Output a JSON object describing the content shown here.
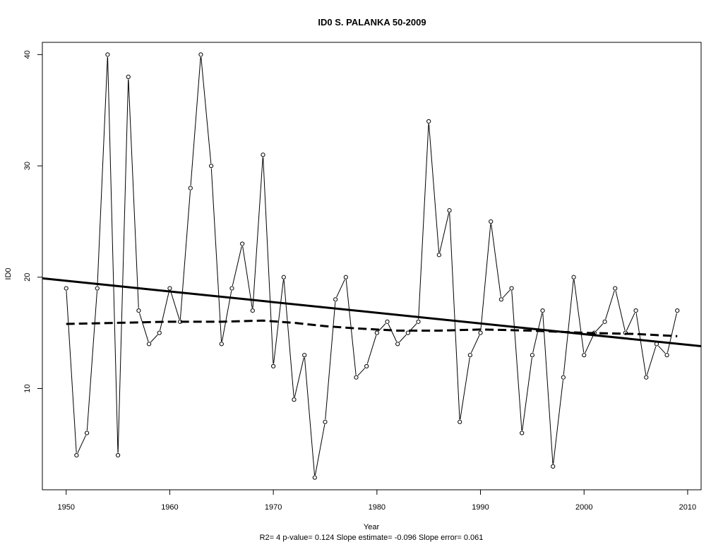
{
  "chart_data": {
    "type": "line",
    "title": "ID0    S. PALANKA 50-2009",
    "xlabel": "Year",
    "ylabel": "ID0",
    "footer": "R2= 4  p-value= 0.124  Slope estimate= -0.096  Slope error= 0.061",
    "xlim": [
      1947.7,
      2011.3
    ],
    "ylim": [
      0.9,
      41.1
    ],
    "xticks": [
      1950,
      1960,
      1970,
      1980,
      1990,
      2000,
      2010
    ],
    "yticks": [
      10,
      20,
      30,
      40
    ],
    "grid": false,
    "series": [
      {
        "style": "thin line with open circle markers",
        "x": [
          1950,
          1951,
          1952,
          1953,
          1954,
          1955,
          1956,
          1957,
          1958,
          1959,
          1960,
          1961,
          1962,
          1963,
          1964,
          1965,
          1966,
          1967,
          1968,
          1969,
          1970,
          1971,
          1972,
          1973,
          1974,
          1975,
          1976,
          1977,
          1978,
          1979,
          1980,
          1981,
          1982,
          1983,
          1984,
          1985,
          1986,
          1987,
          1988,
          1989,
          1990,
          1991,
          1992,
          1993,
          1994,
          1995,
          1996,
          1997,
          1998,
          1999,
          2000,
          2001,
          2002,
          2003,
          2004,
          2005,
          2006,
          2007,
          2008,
          2009
        ],
        "y": [
          19,
          4,
          6,
          19,
          40,
          4,
          38,
          17,
          14,
          15,
          19,
          16,
          28,
          40,
          30,
          14,
          19,
          23,
          17,
          31,
          12,
          20,
          9,
          13,
          2,
          7,
          18,
          20,
          11,
          12,
          15,
          16,
          14,
          15,
          16,
          34,
          22,
          26,
          7,
          13,
          15,
          25,
          18,
          19,
          6,
          13,
          17,
          3,
          11,
          20,
          13,
          15,
          16,
          19,
          15,
          17,
          11,
          14,
          13,
          17
        ]
      },
      {
        "style": "thick solid line",
        "x": [
          1947.7,
          2011.3
        ],
        "y": [
          19.9,
          13.8
        ]
      },
      {
        "style": "thick dashed line",
        "x": [
          1950,
          1955,
          1960,
          1965,
          1969,
          1972,
          1975,
          1978,
          1982,
          1986,
          1990,
          1995,
          2000,
          2005,
          2009
        ],
        "y": [
          15.8,
          15.9,
          16.0,
          16.0,
          16.1,
          15.9,
          15.6,
          15.4,
          15.2,
          15.2,
          15.3,
          15.2,
          15.0,
          14.9,
          14.7
        ]
      }
    ]
  }
}
